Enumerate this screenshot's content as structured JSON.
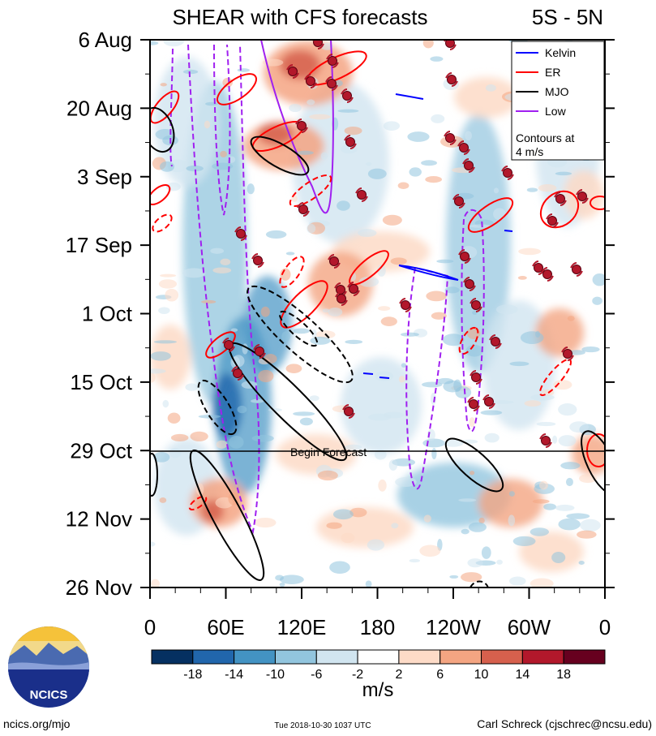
{
  "chart_data": {
    "type": "heatmap",
    "title": "SHEAR with CFS forecasts",
    "region": "5S - 5N",
    "y_ticks": [
      "6 Aug",
      "20 Aug",
      "3 Sep",
      "17 Sep",
      "1 Oct",
      "15 Oct",
      "29 Oct",
      "12 Nov",
      "26 Nov"
    ],
    "x_ticks": [
      "0",
      "60E",
      "120E",
      "180",
      "120W",
      "60W",
      "0"
    ],
    "x_range": [
      0,
      360
    ],
    "forecast_line": {
      "date": "29 Oct",
      "label": "Begin Forecast"
    },
    "legend": {
      "entries": [
        {
          "name": "Kelvin",
          "color": "#0000ff"
        },
        {
          "name": "ER",
          "color": "#ff0000"
        },
        {
          "name": "MJO",
          "color": "#000000"
        },
        {
          "name": "Low",
          "color": "#a020f0"
        }
      ],
      "note_line1": "Contours at",
      "note_line2": "4 m/s",
      "placement": "top-right"
    },
    "colorbar": {
      "labels": [
        "-18",
        "-14",
        "-10",
        "-6",
        "-2",
        "2",
        "6",
        "10",
        "14",
        "18"
      ],
      "colors": [
        "#053061",
        "#2166ac",
        "#4393c3",
        "#92c5de",
        "#d1e5f0",
        "#ffffff",
        "#fddbc7",
        "#f4a582",
        "#d6604d",
        "#b2182b",
        "#67001f"
      ],
      "unit": "m/s"
    }
  },
  "footer": {
    "left": "ncics.org/mjo",
    "center": "Tue 2018-10-30 1037 UTC",
    "right": "Carl Schreck (cjschrec@ncsu.edu)"
  },
  "logo_text": "NCICS"
}
